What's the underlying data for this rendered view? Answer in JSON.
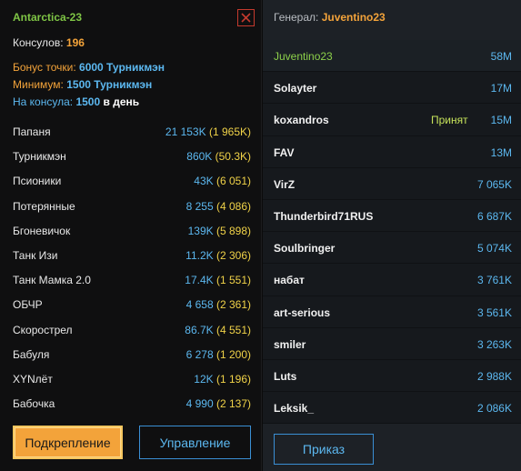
{
  "clan": {
    "name": "Antarctica-23",
    "consuls_label": "Консулов:",
    "consuls_value": "196",
    "bonus_label": "Бонус точки:",
    "bonus_value": "6000 Турникмэн",
    "min_label": "Минимум:",
    "min_value": "1500 Турникмэн",
    "per_label": "На консула:",
    "per_value": "1500",
    "per_suffix": "в день"
  },
  "stats": [
    {
      "name": "Папаня",
      "value": "21 153K",
      "extra": "(1 965K)"
    },
    {
      "name": "Турникмэн",
      "value": "860K",
      "extra": "(50.3K)"
    },
    {
      "name": "Псионики",
      "value": "43K",
      "extra": "(6 051)"
    },
    {
      "name": "Потерянные",
      "value": "8 255",
      "extra": "(4 086)"
    },
    {
      "name": "Бгоневичок",
      "value": "139K",
      "extra": "(5 898)"
    },
    {
      "name": "Танк Изи",
      "value": "11.2K",
      "extra": "(2 306)"
    },
    {
      "name": "Танк Мамка 2.0",
      "value": "17.4K",
      "extra": "(1 551)"
    },
    {
      "name": "ОБЧР",
      "value": "4 658",
      "extra": "(2 361)"
    },
    {
      "name": "Скорострел",
      "value": "86.7K",
      "extra": "(4 551)"
    },
    {
      "name": "Бабуля",
      "value": "6 278",
      "extra": "(1 200)"
    },
    {
      "name": "XYNлёт",
      "value": "12K",
      "extra": "(1 196)"
    },
    {
      "name": "Бабочка",
      "value": "4 990",
      "extra": "(2 137)"
    }
  ],
  "buttons": {
    "reinforce": "Подкрепление",
    "manage": "Управление",
    "order": "Приказ"
  },
  "general": {
    "label": "Генерал:",
    "name": "Juventino23"
  },
  "members": [
    {
      "name": "Juventino23",
      "status": "",
      "value": "58M"
    },
    {
      "name": "Solayter",
      "status": "",
      "value": "17M"
    },
    {
      "name": "koxandros",
      "status": "Принят",
      "value": "15M"
    },
    {
      "name": "FAV",
      "status": "",
      "value": "13M"
    },
    {
      "name": "VirZ",
      "status": "",
      "value": "7 065K"
    },
    {
      "name": "Thunderbird71RUS",
      "status": "",
      "value": "6 687K"
    },
    {
      "name": "Soulbringer",
      "status": "",
      "value": "5 074K"
    },
    {
      "name": "набат",
      "status": "",
      "value": "3 761K"
    },
    {
      "name": "art-serious",
      "status": "",
      "value": "3 561K"
    },
    {
      "name": "smiler",
      "status": "",
      "value": "3 263K"
    },
    {
      "name": "Luts",
      "status": "",
      "value": "2 988K"
    },
    {
      "name": "Leksik_",
      "status": "",
      "value": "2 086K"
    }
  ],
  "icons": {
    "close": "close-icon"
  },
  "colors": {
    "accent_orange": "#f3a33a",
    "accent_blue": "#5cb8f0",
    "accent_green": "#7fc545",
    "close_red": "#c53a2e"
  }
}
